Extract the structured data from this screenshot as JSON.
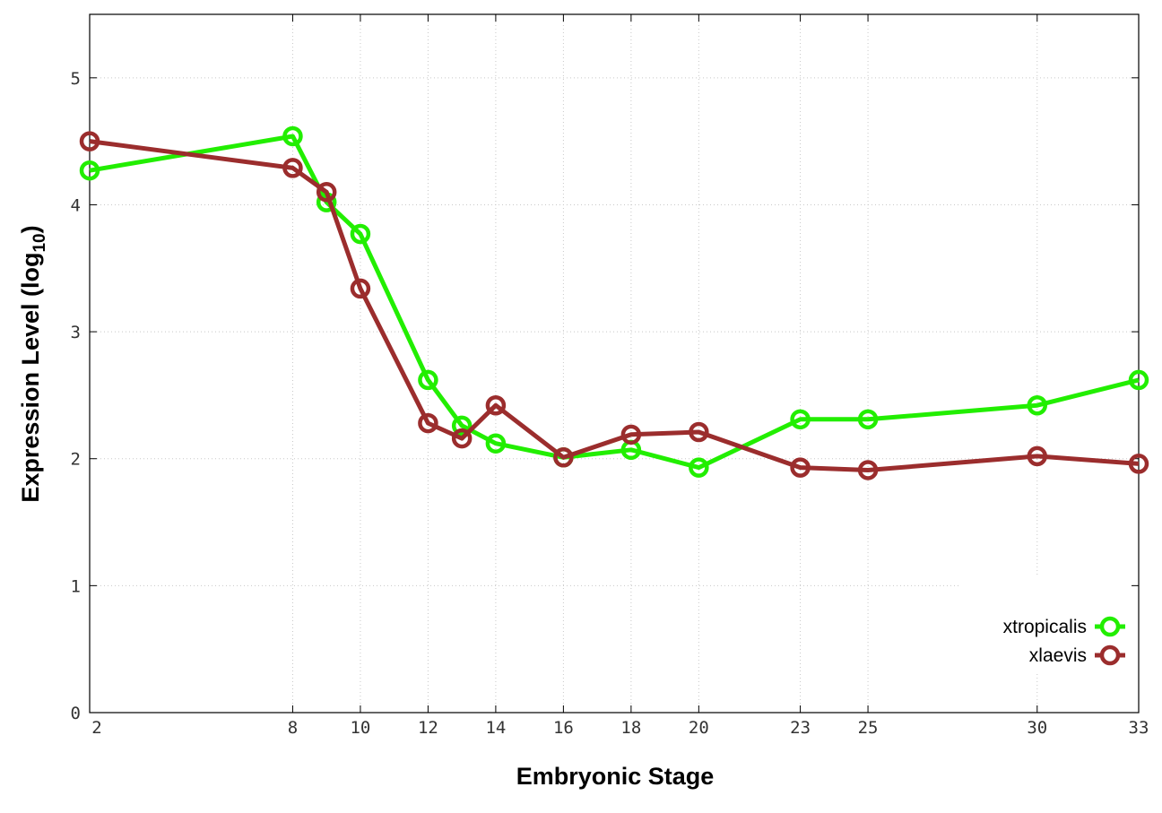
{
  "chart_data": {
    "type": "line",
    "title": "",
    "xlabel": "Embryonic Stage",
    "ylabel_main": "Expression Level (log",
    "ylabel_sub": "10",
    "ylabel_close": ")",
    "x": [
      2,
      8,
      9,
      10,
      12,
      13,
      14,
      16,
      18,
      20,
      23,
      25,
      30,
      33
    ],
    "xticks": [
      2,
      8,
      10,
      12,
      14,
      16,
      18,
      20,
      23,
      25,
      30,
      33
    ],
    "yticks": [
      0,
      1,
      2,
      3,
      4,
      5
    ],
    "xlim": [
      2,
      33
    ],
    "ylim": [
      0,
      5.5
    ],
    "grid": true,
    "legend_position": "bottom-right",
    "series": [
      {
        "name": "xtropicalis",
        "color": "#22ee00",
        "values": [
          4.27,
          4.54,
          4.02,
          3.77,
          2.62,
          2.26,
          2.12,
          2.01,
          2.07,
          1.93,
          2.31,
          2.31,
          2.42,
          2.62
        ]
      },
      {
        "name": "xlaevis",
        "color": "#9b2d2d",
        "values": [
          4.5,
          4.29,
          4.1,
          3.34,
          2.28,
          2.16,
          2.42,
          2.01,
          2.19,
          2.21,
          1.93,
          1.91,
          2.02,
          1.96
        ]
      }
    ]
  }
}
